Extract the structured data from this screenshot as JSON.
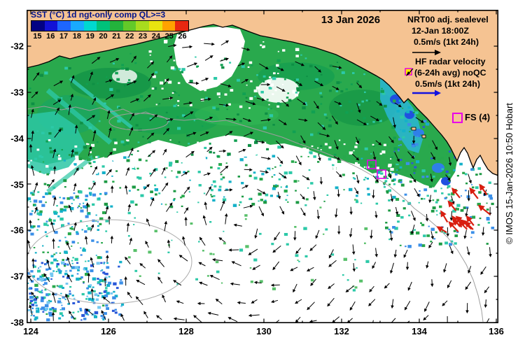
{
  "title": "13 Jan 2026",
  "colorbar": {
    "label": "SST (°C) 1d ngt-only comp QL>=3",
    "ticks": [
      "15",
      "16",
      "17",
      "18",
      "19",
      "20",
      "21",
      "22",
      "23",
      "24",
      "25",
      "26"
    ],
    "cell_colors": [
      "#020283",
      "#1212d6",
      "#1e66ff",
      "#19aaff",
      "#00d8d0",
      "#00c27a",
      "#23b33c",
      "#63c929",
      "#a8dc1e",
      "#e8e40f",
      "#ffa200",
      "#e82810"
    ]
  },
  "legend": {
    "lines": [
      "NRT00 adj. sealevel",
      "12-Jan 18:00Z",
      "0.5m/s (1kt 24h)",
      "HF radar velocity",
      "(6-24h avg) noQC",
      "0.5m/s (1kt 24h)"
    ]
  },
  "markers": {
    "fs_label": "FS (4)",
    "outline_color": "#e800e8",
    "station_fill": "#ffe800"
  },
  "axes": {
    "x_ticks": [
      "124",
      "126",
      "128",
      "130",
      "132",
      "134",
      "136"
    ],
    "y_ticks": [
      "-32",
      "-33",
      "-34",
      "-35",
      "-36",
      "-37",
      "-38"
    ]
  },
  "copyright": "© IMOS 15-Jan-2026 10:50 Hobart",
  "colors": {
    "land": "#f5c392",
    "ocean": "#ffffff",
    "coast": "#000000",
    "contour": "#9e9e9e",
    "sst_green": "#29a94d",
    "sst_cyan": "#2cc7a4",
    "sst_blue": "#2f7fe8",
    "vector_black": "#000000",
    "vector_red": "#d81e10",
    "vector_blue": "#1212e0"
  }
}
